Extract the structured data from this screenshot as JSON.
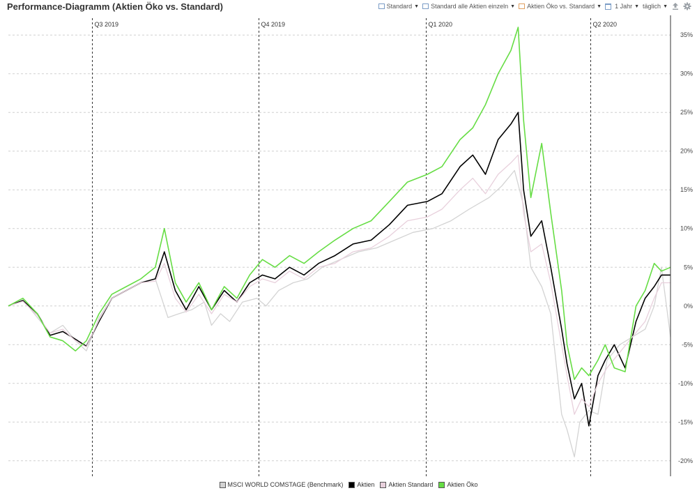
{
  "header": {
    "title": "Performance-Diagramm (Aktien Öko vs. Standard)"
  },
  "toolbar": {
    "items": [
      {
        "label": "Standard",
        "icon": "chart-box-icon"
      },
      {
        "label": "Standard alle Aktien einzeln",
        "icon": "chart-box-icon"
      },
      {
        "label": "Aktien Öko vs. Standard",
        "icon": "chart-box-icon"
      },
      {
        "label": "1 Jahr",
        "icon": "calendar-icon"
      },
      {
        "label": "täglich",
        "icon": ""
      }
    ],
    "upload_icon": "upload-icon",
    "settings_icon": "gear-icon"
  },
  "chart_data": {
    "type": "line",
    "title": "Performance-Diagramm (Aktien Öko vs. Standard)",
    "xlabel": "",
    "ylabel": "",
    "x_range": [
      "2019-05-16",
      "2020-05-15"
    ],
    "ylim": [
      -22,
      37
    ],
    "y_ticks": [
      35,
      30,
      25,
      20,
      15,
      10,
      5,
      0,
      -5,
      -10,
      -15,
      -20
    ],
    "y_tick_labels": [
      "35%",
      "30%",
      "25%",
      "20%",
      "15%",
      "10%",
      "5%",
      "0%",
      "-5%",
      "-10%",
      "-15%",
      "-20%"
    ],
    "quarter_markers": [
      {
        "label": "Q3 2019",
        "date": "2019-07-01"
      },
      {
        "label": "Q4 2019",
        "date": "2019-10-01"
      },
      {
        "label": "Q1 2020",
        "date": "2020-01-01"
      },
      {
        "label": "Q2 2020",
        "date": "2020-04-01"
      }
    ],
    "grid": true,
    "legend_position": "bottom",
    "series": [
      {
        "name": "MSCI WORLD COMSTAGE (Benchmark)",
        "color": "#d3d3d3",
        "points": [
          [
            "2019-05-16",
            0
          ],
          [
            "2019-05-24",
            0.8
          ],
          [
            "2019-06-01",
            -1.5
          ],
          [
            "2019-06-08",
            -3.5
          ],
          [
            "2019-06-15",
            -2.5
          ],
          [
            "2019-06-22",
            -4.5
          ],
          [
            "2019-06-28",
            -5.8
          ],
          [
            "2019-07-05",
            -1.5
          ],
          [
            "2019-07-12",
            1
          ],
          [
            "2019-07-20",
            2
          ],
          [
            "2019-07-28",
            3
          ],
          [
            "2019-08-05",
            3.5
          ],
          [
            "2019-08-12",
            -1.5
          ],
          [
            "2019-08-18",
            -1
          ],
          [
            "2019-08-25",
            -0.5
          ],
          [
            "2019-09-01",
            0.5
          ],
          [
            "2019-09-05",
            -2.5
          ],
          [
            "2019-09-10",
            -1
          ],
          [
            "2019-09-15",
            -2
          ],
          [
            "2019-09-22",
            0.5
          ],
          [
            "2019-09-30",
            1
          ],
          [
            "2019-10-05",
            0
          ],
          [
            "2019-10-12",
            2
          ],
          [
            "2019-10-20",
            3
          ],
          [
            "2019-10-28",
            3.5
          ],
          [
            "2019-11-05",
            5
          ],
          [
            "2019-11-15",
            6
          ],
          [
            "2019-11-25",
            7
          ],
          [
            "2019-12-05",
            7.5
          ],
          [
            "2019-12-15",
            8.5
          ],
          [
            "2019-12-25",
            9.5
          ],
          [
            "2020-01-05",
            10
          ],
          [
            "2020-01-15",
            11
          ],
          [
            "2020-01-25",
            12.5
          ],
          [
            "2020-02-05",
            14
          ],
          [
            "2020-02-12",
            15.5
          ],
          [
            "2020-02-19",
            17.5
          ],
          [
            "2020-02-24",
            13
          ],
          [
            "2020-02-28",
            5
          ],
          [
            "2020-03-05",
            2.5
          ],
          [
            "2020-03-10",
            -1
          ],
          [
            "2020-03-16",
            -14
          ],
          [
            "2020-03-19",
            -16
          ],
          [
            "2020-03-23",
            -19.5
          ],
          [
            "2020-03-26",
            -15
          ],
          [
            "2020-03-31",
            -13.5
          ],
          [
            "2020-04-05",
            -14
          ],
          [
            "2020-04-10",
            -7
          ],
          [
            "2020-04-17",
            -5
          ],
          [
            "2020-04-24",
            -4
          ],
          [
            "2020-05-01",
            -3
          ],
          [
            "2020-05-06",
            0
          ],
          [
            "2020-05-10",
            5
          ],
          [
            "2020-05-15",
            -4
          ]
        ]
      },
      {
        "name": "Aktien",
        "color": "#000000",
        "points": [
          [
            "2019-05-16",
            0
          ],
          [
            "2019-05-24",
            0.7
          ],
          [
            "2019-06-01",
            -1
          ],
          [
            "2019-06-08",
            -3.8
          ],
          [
            "2019-06-15",
            -3.3
          ],
          [
            "2019-06-22",
            -4.3
          ],
          [
            "2019-06-28",
            -5.2
          ],
          [
            "2019-07-05",
            -2
          ],
          [
            "2019-07-12",
            1
          ],
          [
            "2019-07-20",
            2
          ],
          [
            "2019-07-28",
            3
          ],
          [
            "2019-08-05",
            3.5
          ],
          [
            "2019-08-10",
            7
          ],
          [
            "2019-08-16",
            2
          ],
          [
            "2019-08-22",
            -0.5
          ],
          [
            "2019-08-29",
            2.5
          ],
          [
            "2019-09-05",
            -0.5
          ],
          [
            "2019-09-12",
            2
          ],
          [
            "2019-09-19",
            0.5
          ],
          [
            "2019-09-26",
            3
          ],
          [
            "2019-10-03",
            4
          ],
          [
            "2019-10-10",
            3.5
          ],
          [
            "2019-10-18",
            5
          ],
          [
            "2019-10-26",
            4
          ],
          [
            "2019-11-03",
            5.5
          ],
          [
            "2019-11-12",
            6.5
          ],
          [
            "2019-11-22",
            8
          ],
          [
            "2019-12-02",
            8.5
          ],
          [
            "2019-12-12",
            10.5
          ],
          [
            "2019-12-22",
            13
          ],
          [
            "2020-01-02",
            13.5
          ],
          [
            "2020-01-10",
            14.5
          ],
          [
            "2020-01-20",
            18
          ],
          [
            "2020-01-27",
            19.5
          ],
          [
            "2020-02-03",
            17
          ],
          [
            "2020-02-10",
            21.5
          ],
          [
            "2020-02-17",
            23.5
          ],
          [
            "2020-02-21",
            25
          ],
          [
            "2020-02-24",
            15
          ],
          [
            "2020-02-28",
            9
          ],
          [
            "2020-03-05",
            11
          ],
          [
            "2020-03-10",
            5
          ],
          [
            "2020-03-16",
            -3
          ],
          [
            "2020-03-19",
            -7.5
          ],
          [
            "2020-03-23",
            -12
          ],
          [
            "2020-03-27",
            -10
          ],
          [
            "2020-03-31",
            -15.5
          ],
          [
            "2020-04-05",
            -9
          ],
          [
            "2020-04-09",
            -7
          ],
          [
            "2020-04-14",
            -5
          ],
          [
            "2020-04-20",
            -8
          ],
          [
            "2020-04-26",
            -2
          ],
          [
            "2020-05-01",
            1
          ],
          [
            "2020-05-06",
            2.5
          ],
          [
            "2020-05-10",
            4
          ],
          [
            "2020-05-15",
            4
          ]
        ]
      },
      {
        "name": "Aktien Standard",
        "color": "#e8d0dc",
        "points": [
          [
            "2019-05-16",
            0
          ],
          [
            "2019-05-24",
            0.6
          ],
          [
            "2019-06-01",
            -1.2
          ],
          [
            "2019-06-08",
            -3.5
          ],
          [
            "2019-06-15",
            -3
          ],
          [
            "2019-06-22",
            -4.5
          ],
          [
            "2019-06-28",
            -5.3
          ],
          [
            "2019-07-05",
            -1.8
          ],
          [
            "2019-07-12",
            1
          ],
          [
            "2019-07-20",
            2
          ],
          [
            "2019-07-28",
            3
          ],
          [
            "2019-08-05",
            3.2
          ],
          [
            "2019-08-10",
            5.5
          ],
          [
            "2019-08-16",
            1
          ],
          [
            "2019-08-22",
            -0.8
          ],
          [
            "2019-08-29",
            1.5
          ],
          [
            "2019-09-05",
            -1
          ],
          [
            "2019-09-12",
            1.5
          ],
          [
            "2019-09-19",
            0.5
          ],
          [
            "2019-09-26",
            2.5
          ],
          [
            "2019-10-03",
            3.5
          ],
          [
            "2019-10-10",
            3
          ],
          [
            "2019-10-18",
            4.5
          ],
          [
            "2019-10-26",
            3.5
          ],
          [
            "2019-11-03",
            5
          ],
          [
            "2019-11-12",
            5.5
          ],
          [
            "2019-11-22",
            7
          ],
          [
            "2019-12-02",
            7.5
          ],
          [
            "2019-12-12",
            9
          ],
          [
            "2019-12-22",
            11
          ],
          [
            "2020-01-02",
            11.5
          ],
          [
            "2020-01-10",
            12.5
          ],
          [
            "2020-01-20",
            15
          ],
          [
            "2020-01-27",
            16.5
          ],
          [
            "2020-02-03",
            14.5
          ],
          [
            "2020-02-10",
            17
          ],
          [
            "2020-02-17",
            18.5
          ],
          [
            "2020-02-21",
            19.5
          ],
          [
            "2020-02-24",
            12
          ],
          [
            "2020-02-28",
            7
          ],
          [
            "2020-03-05",
            8
          ],
          [
            "2020-03-10",
            3
          ],
          [
            "2020-03-16",
            -5
          ],
          [
            "2020-03-19",
            -9
          ],
          [
            "2020-03-23",
            -14
          ],
          [
            "2020-03-27",
            -12
          ],
          [
            "2020-03-31",
            -13
          ],
          [
            "2020-04-05",
            -10
          ],
          [
            "2020-04-10",
            -8
          ],
          [
            "2020-04-17",
            -6
          ],
          [
            "2020-04-24",
            -4
          ],
          [
            "2020-05-01",
            -2
          ],
          [
            "2020-05-06",
            1
          ],
          [
            "2020-05-10",
            3
          ],
          [
            "2020-05-15",
            3
          ]
        ]
      },
      {
        "name": "Aktien Öko",
        "color": "#66dd44",
        "points": [
          [
            "2019-05-16",
            0
          ],
          [
            "2019-05-24",
            1
          ],
          [
            "2019-06-01",
            -1
          ],
          [
            "2019-06-08",
            -4
          ],
          [
            "2019-06-15",
            -4.5
          ],
          [
            "2019-06-22",
            -5.8
          ],
          [
            "2019-06-28",
            -4.5
          ],
          [
            "2019-07-05",
            -1
          ],
          [
            "2019-07-12",
            1.5
          ],
          [
            "2019-07-20",
            2.5
          ],
          [
            "2019-07-28",
            3.5
          ],
          [
            "2019-08-05",
            5
          ],
          [
            "2019-08-10",
            10
          ],
          [
            "2019-08-16",
            3
          ],
          [
            "2019-08-22",
            0.5
          ],
          [
            "2019-08-29",
            3
          ],
          [
            "2019-09-05",
            -0.5
          ],
          [
            "2019-09-12",
            2.5
          ],
          [
            "2019-09-19",
            1
          ],
          [
            "2019-09-26",
            4
          ],
          [
            "2019-10-03",
            6
          ],
          [
            "2019-10-10",
            5
          ],
          [
            "2019-10-18",
            6.5
          ],
          [
            "2019-10-26",
            5.5
          ],
          [
            "2019-11-03",
            7
          ],
          [
            "2019-11-12",
            8.5
          ],
          [
            "2019-11-22",
            10
          ],
          [
            "2019-12-02",
            11
          ],
          [
            "2019-12-12",
            13.5
          ],
          [
            "2019-12-22",
            16
          ],
          [
            "2020-01-02",
            17
          ],
          [
            "2020-01-10",
            18
          ],
          [
            "2020-01-20",
            21.5
          ],
          [
            "2020-01-27",
            23
          ],
          [
            "2020-02-03",
            26
          ],
          [
            "2020-02-10",
            30
          ],
          [
            "2020-02-17",
            33
          ],
          [
            "2020-02-21",
            36
          ],
          [
            "2020-02-24",
            24
          ],
          [
            "2020-02-28",
            14
          ],
          [
            "2020-03-05",
            21
          ],
          [
            "2020-03-10",
            12
          ],
          [
            "2020-03-16",
            2
          ],
          [
            "2020-03-19",
            -5
          ],
          [
            "2020-03-23",
            -9.5
          ],
          [
            "2020-03-27",
            -8
          ],
          [
            "2020-03-31",
            -9
          ],
          [
            "2020-04-05",
            -7
          ],
          [
            "2020-04-09",
            -5
          ],
          [
            "2020-04-14",
            -8
          ],
          [
            "2020-04-20",
            -8.5
          ],
          [
            "2020-04-26",
            0
          ],
          [
            "2020-05-01",
            2
          ],
          [
            "2020-05-06",
            5.5
          ],
          [
            "2020-05-10",
            4.5
          ],
          [
            "2020-05-15",
            5
          ]
        ]
      }
    ]
  },
  "legend": {
    "items": [
      {
        "label": "MSCI WORLD COMSTAGE (Benchmark)",
        "color": "#d3d3d3"
      },
      {
        "label": "Aktien",
        "color": "#000000"
      },
      {
        "label": "Aktien Standard",
        "color": "#e8d0dc"
      },
      {
        "label": "Aktien Öko",
        "color": "#66dd44"
      }
    ]
  }
}
